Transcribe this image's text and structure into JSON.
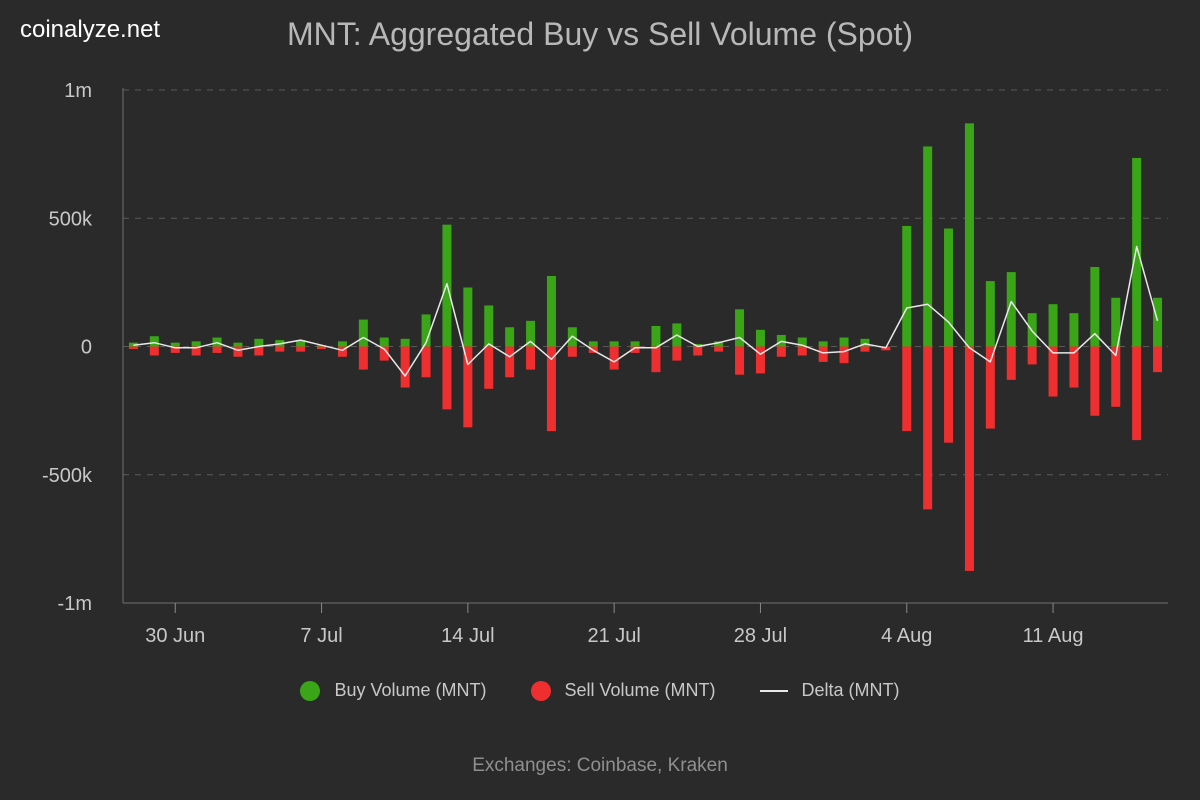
{
  "brand": "coinalyze.net",
  "colors": {
    "buy": "#3aa517",
    "sell": "#ef2f2f",
    "delta": "#e8e8e8",
    "grid": "#5a5a5a",
    "background": "#2a2a2b"
  },
  "footer": "Exchanges: Coinbase, Kraken",
  "chart_data": {
    "type": "bar",
    "title": "MNT: Aggregated Buy vs Sell Volume (Spot)",
    "xlabel": "",
    "ylabel": "",
    "ylim": [
      -1000000,
      1000000
    ],
    "y_ticks": [
      1000000,
      500000,
      0,
      -500000,
      -1000000
    ],
    "y_tick_labels": [
      "1m",
      "500k",
      "0",
      "-500k",
      "-1m"
    ],
    "x_tick_labels": [
      "30 Jun",
      "7 Jul",
      "14 Jul",
      "21 Jul",
      "28 Jul",
      "4 Aug",
      "11 Aug"
    ],
    "x_tick_indices": [
      2,
      9,
      16,
      23,
      30,
      37,
      44
    ],
    "grid": true,
    "legend_position": "bottom",
    "categories": [
      "27 Jun",
      "28 Jun",
      "29 Jun",
      "30 Jun",
      "1 Jul",
      "2 Jul",
      "3 Jul",
      "4 Jul",
      "5 Jul",
      "6 Jul",
      "7 Jul",
      "8 Jul",
      "9 Jul",
      "10 Jul",
      "11 Jul",
      "12 Jul",
      "13 Jul",
      "14 Jul",
      "15 Jul",
      "16 Jul",
      "17 Jul",
      "18 Jul",
      "19 Jul",
      "20 Jul",
      "21 Jul",
      "22 Jul",
      "23 Jul",
      "24 Jul",
      "25 Jul",
      "26 Jul",
      "27 Jul",
      "28 Jul",
      "29 Jul",
      "30 Jul",
      "31 Jul",
      "1 Aug",
      "2 Aug",
      "3 Aug",
      "4 Aug",
      "5 Aug",
      "6 Aug",
      "7 Aug",
      "8 Aug",
      "9 Aug",
      "10 Aug",
      "11 Aug",
      "12 Aug",
      "13 Aug",
      "14 Aug",
      "15 Aug"
    ],
    "series": [
      {
        "name": "Buy Volume (MNT)",
        "values": [
          15000,
          40000,
          15000,
          20000,
          35000,
          15000,
          30000,
          25000,
          25000,
          5000,
          20000,
          105000,
          35000,
          30000,
          125000,
          475000,
          230000,
          160000,
          75000,
          100000,
          275000,
          75000,
          20000,
          20000,
          20000,
          80000,
          90000,
          10000,
          20000,
          145000,
          65000,
          45000,
          35000,
          20000,
          35000,
          30000,
          0,
          470000,
          780000,
          460000,
          870000,
          255000,
          290000,
          130000,
          165000,
          130000,
          310000,
          190000,
          735000,
          190000
        ]
      },
      {
        "name": "Sell Volume (MNT)",
        "values": [
          -10000,
          -35000,
          -25000,
          -35000,
          -25000,
          -40000,
          -35000,
          -20000,
          -20000,
          -10000,
          -40000,
          -90000,
          -55000,
          -160000,
          -120000,
          -245000,
          -315000,
          -165000,
          -120000,
          -90000,
          -330000,
          -40000,
          -25000,
          -90000,
          -25000,
          -100000,
          -55000,
          -35000,
          -20000,
          -110000,
          -105000,
          -40000,
          -35000,
          -60000,
          -65000,
          -20000,
          -15000,
          -330000,
          -635000,
          -375000,
          -875000,
          -320000,
          -130000,
          -70000,
          -195000,
          -160000,
          -270000,
          -235000,
          -365000,
          -100000
        ]
      },
      {
        "name": "Delta (MNT)",
        "values": [
          5000,
          15000,
          -5000,
          -5000,
          15000,
          -15000,
          0,
          10000,
          25000,
          5000,
          -15000,
          35000,
          -10000,
          -115000,
          15000,
          245000,
          -70000,
          10000,
          -40000,
          20000,
          -50000,
          40000,
          -15000,
          -60000,
          -5000,
          -5000,
          45000,
          0,
          15000,
          35000,
          -30000,
          20000,
          5000,
          -25000,
          -20000,
          10000,
          -5000,
          150000,
          165000,
          95000,
          -5000,
          -60000,
          175000,
          60000,
          -25000,
          -25000,
          50000,
          -35000,
          390000,
          100000
        ]
      }
    ]
  }
}
